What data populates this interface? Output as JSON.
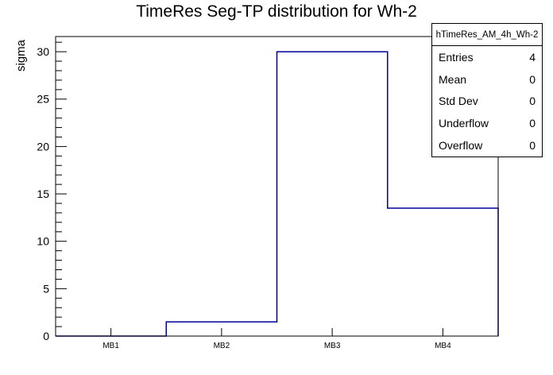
{
  "title": "TimeRes Seg-TP distribution for Wh-2",
  "y_axis": {
    "label": "sigma",
    "tick_labels": [
      "0",
      "5",
      "10",
      "15",
      "20",
      "25",
      "30"
    ],
    "tick_values": [
      0,
      5,
      10,
      15,
      20,
      25,
      30
    ],
    "minor_step": 1,
    "max": 31.6
  },
  "x_axis": {
    "labels": [
      "MB1",
      "MB2",
      "MB3",
      "MB4"
    ]
  },
  "stats_box": {
    "header": "hTimeRes_AM_4h_Wh-2",
    "rows": [
      {
        "label": "Entries",
        "value": "4"
      },
      {
        "label": "Mean",
        "value": "0"
      },
      {
        "label": "Std Dev",
        "value": "0"
      },
      {
        "label": "Underflow",
        "value": "0"
      },
      {
        "label": "Overflow",
        "value": "0"
      }
    ]
  },
  "colors": {
    "histogram_line": "#000099",
    "frame": "#000000",
    "background": "#ffffff"
  },
  "chart_data": {
    "type": "step-histogram",
    "categories": [
      "MB1",
      "MB2",
      "MB3",
      "MB4"
    ],
    "values": [
      0,
      1.5,
      30,
      13.5
    ],
    "title": "TimeRes Seg-TP distribution for Wh-2",
    "xlabel": "",
    "ylabel": "sigma",
    "ylim": [
      0,
      31.6
    ],
    "y_major_ticks": [
      0,
      5,
      10,
      15,
      20,
      25,
      30
    ],
    "y_minor_step": 1,
    "grid": false,
    "legend": "none",
    "stats": {
      "name": "hTimeRes_AM_4h_Wh-2",
      "entries": 4,
      "mean": 0,
      "std_dev": 0,
      "underflow": 0,
      "overflow": 0
    }
  }
}
